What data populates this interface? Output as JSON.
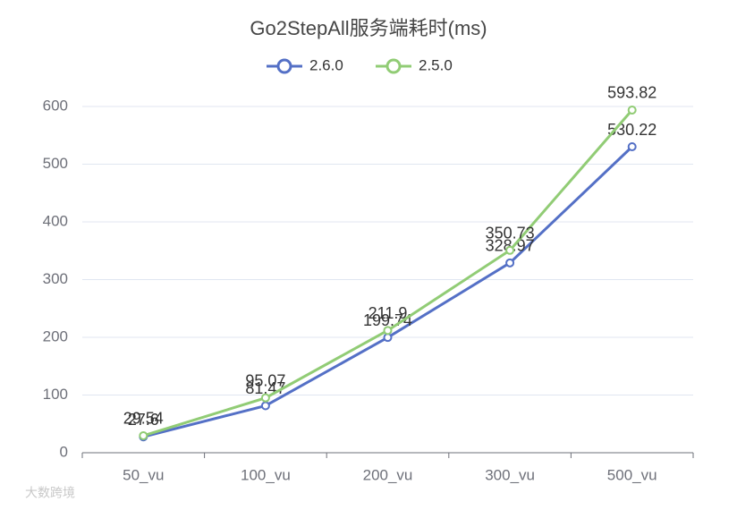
{
  "chart_data": {
    "type": "line",
    "title": "Go2StepAll服务端耗时(ms)",
    "categories": [
      "50_vu",
      "100_vu",
      "200_vu",
      "300_vu",
      "500_vu"
    ],
    "series": [
      {
        "name": "2.6.0",
        "color": "#5470c6",
        "values": [
          27.6,
          81.47,
          199.74,
          328.97,
          530.22
        ]
      },
      {
        "name": "2.5.0",
        "color": "#91cc75",
        "values": [
          29.54,
          95.07,
          211.9,
          350.73,
          593.82
        ]
      }
    ],
    "ylim": [
      0,
      600
    ],
    "yticks": [
      0,
      100,
      200,
      300,
      400,
      500,
      600
    ],
    "grid": true,
    "legend": "top",
    "watermark": "大数跨境"
  }
}
